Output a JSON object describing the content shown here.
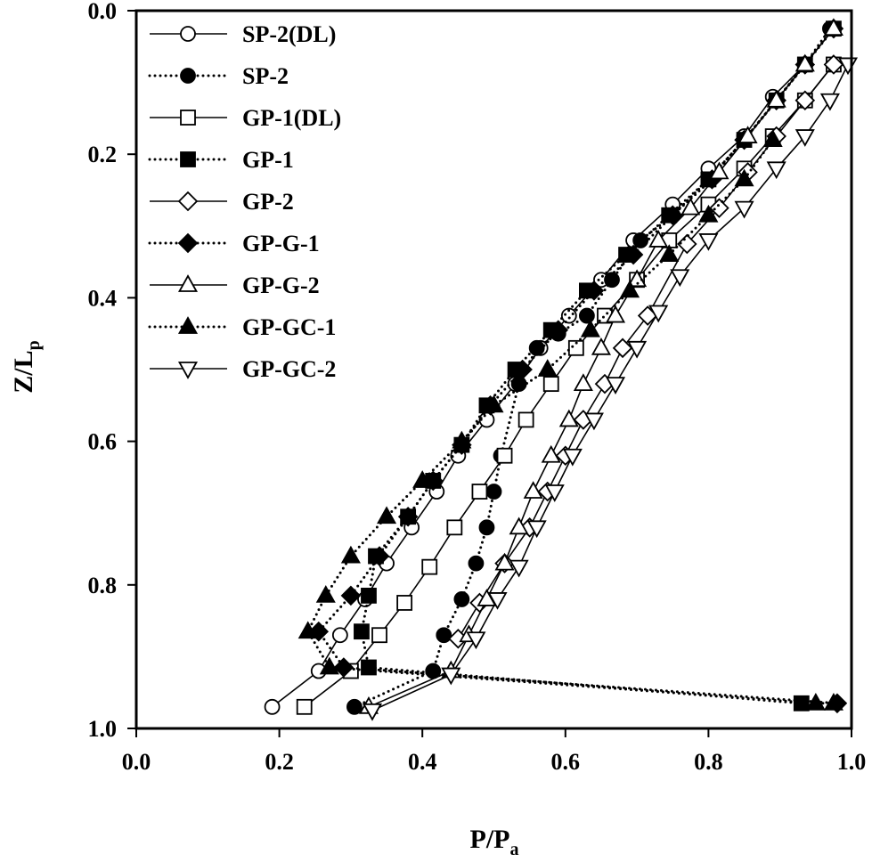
{
  "chart_data": {
    "type": "line",
    "xlabel": "P/Pa",
    "xlabel_main": "P/P",
    "xlabel_sub": "a",
    "ylabel": "Z/Lp",
    "ylabel_main": "Z/L",
    "ylabel_sub": "p",
    "xlim": [
      0.0,
      1.0
    ],
    "ylim": [
      0.0,
      1.0
    ],
    "y_inverted": true,
    "grid": false,
    "legend_position": "top-left",
    "x_ticks": [
      "0.0",
      "0.2",
      "0.4",
      "0.6",
      "0.8",
      "1.0"
    ],
    "y_ticks": [
      "0.0",
      "0.2",
      "0.4",
      "0.6",
      "0.8",
      "1.0"
    ],
    "series": [
      {
        "name": "SP-2(DL)",
        "marker": "circle",
        "filled": false,
        "line": "solid",
        "x": [
          0.19,
          0.255,
          0.285,
          0.32,
          0.35,
          0.385,
          0.42,
          0.45,
          0.49,
          0.53,
          0.565,
          0.605,
          0.65,
          0.695,
          0.75,
          0.8,
          0.85,
          0.89,
          0.935,
          0.975
        ],
        "y": [
          0.97,
          0.92,
          0.87,
          0.82,
          0.77,
          0.72,
          0.67,
          0.62,
          0.57,
          0.52,
          0.47,
          0.425,
          0.375,
          0.32,
          0.27,
          0.22,
          0.175,
          0.12,
          0.075,
          0.025
        ]
      },
      {
        "name": "SP-2",
        "marker": "circle",
        "filled": true,
        "line": "dotted",
        "x": [
          0.305,
          0.415,
          0.43,
          0.455,
          0.475,
          0.49,
          0.5,
          0.51,
          0.535,
          0.56,
          0.59,
          0.63,
          0.665,
          0.705,
          0.75,
          0.8,
          0.85,
          0.895,
          0.935,
          0.97
        ],
        "y": [
          0.97,
          0.92,
          0.87,
          0.82,
          0.77,
          0.72,
          0.67,
          0.62,
          0.52,
          0.47,
          0.45,
          0.425,
          0.375,
          0.32,
          0.285,
          0.235,
          0.18,
          0.125,
          0.075,
          0.025
        ]
      },
      {
        "name": "GP-1(DL)",
        "marker": "square",
        "filled": false,
        "line": "solid",
        "x": [
          0.235,
          0.3,
          0.34,
          0.375,
          0.41,
          0.445,
          0.48,
          0.515,
          0.545,
          0.58,
          0.615,
          0.655,
          0.7,
          0.745,
          0.8,
          0.85,
          0.89,
          0.935,
          0.975
        ],
        "y": [
          0.97,
          0.92,
          0.87,
          0.825,
          0.775,
          0.72,
          0.67,
          0.62,
          0.57,
          0.52,
          0.47,
          0.425,
          0.375,
          0.32,
          0.27,
          0.22,
          0.175,
          0.125,
          0.075
        ]
      },
      {
        "name": "GP-1",
        "marker": "square",
        "filled": true,
        "line": "dotted",
        "x": [
          0.93,
          0.325,
          0.315,
          0.325,
          0.335,
          0.38,
          0.415,
          0.455,
          0.49,
          0.53,
          0.58,
          0.63,
          0.685,
          0.745,
          0.8,
          0.85,
          0.895,
          0.935,
          0.975
        ],
        "y": [
          0.965,
          0.915,
          0.865,
          0.815,
          0.76,
          0.705,
          0.655,
          0.605,
          0.55,
          0.5,
          0.445,
          0.39,
          0.34,
          0.285,
          0.235,
          0.18,
          0.125,
          0.075,
          0.025
        ]
      },
      {
        "name": "GP-2",
        "marker": "diamond",
        "filled": false,
        "line": "solid",
        "x": [
          0.45,
          0.48,
          0.515,
          0.55,
          0.575,
          0.6,
          0.625,
          0.655,
          0.68,
          0.715,
          0.77,
          0.815,
          0.855,
          0.895,
          0.935,
          0.975
        ],
        "y": [
          0.875,
          0.825,
          0.77,
          0.72,
          0.67,
          0.62,
          0.57,
          0.52,
          0.47,
          0.425,
          0.325,
          0.275,
          0.225,
          0.175,
          0.125,
          0.075
        ]
      },
      {
        "name": "GP-G-1",
        "marker": "diamond",
        "filled": true,
        "line": "dotted",
        "x": [
          0.98,
          0.29,
          0.255,
          0.3,
          0.34,
          0.38,
          0.415,
          0.455,
          0.495,
          0.54,
          0.59,
          0.64,
          0.695,
          0.75,
          0.805,
          0.85,
          0.895,
          0.935,
          0.975
        ],
        "y": [
          0.965,
          0.915,
          0.865,
          0.815,
          0.76,
          0.705,
          0.655,
          0.605,
          0.55,
          0.5,
          0.445,
          0.39,
          0.34,
          0.285,
          0.235,
          0.18,
          0.125,
          0.075,
          0.025
        ]
      },
      {
        "name": "GP-G-2",
        "marker": "triangle-up",
        "filled": false,
        "line": "solid",
        "x": [
          0.325,
          0.44,
          0.465,
          0.49,
          0.515,
          0.535,
          0.555,
          0.58,
          0.605,
          0.625,
          0.65,
          0.67,
          0.7,
          0.73,
          0.775,
          0.815,
          0.855,
          0.895,
          0.935,
          0.975
        ],
        "y": [
          0.97,
          0.92,
          0.87,
          0.82,
          0.77,
          0.72,
          0.67,
          0.62,
          0.57,
          0.52,
          0.47,
          0.425,
          0.375,
          0.32,
          0.275,
          0.225,
          0.175,
          0.125,
          0.075,
          0.025
        ]
      },
      {
        "name": "GP-GC-1",
        "marker": "triangle-up",
        "filled": true,
        "line": "dotted",
        "x": [
          0.975,
          0.95,
          0.27,
          0.24,
          0.265,
          0.3,
          0.35,
          0.4,
          0.455,
          0.5,
          0.575,
          0.635,
          0.69,
          0.745,
          0.8,
          0.85,
          0.89
        ],
        "y": [
          0.965,
          0.965,
          0.915,
          0.865,
          0.815,
          0.76,
          0.705,
          0.655,
          0.6,
          0.55,
          0.5,
          0.445,
          0.39,
          0.34,
          0.285,
          0.235,
          0.18
        ]
      },
      {
        "name": "GP-GC-2",
        "marker": "triangle-down",
        "filled": false,
        "line": "solid",
        "x": [
          0.33,
          0.44,
          0.475,
          0.505,
          0.535,
          0.56,
          0.585,
          0.61,
          0.64,
          0.67,
          0.7,
          0.73,
          0.76,
          0.8,
          0.85,
          0.895,
          0.935,
          0.97,
          0.995
        ],
        "y": [
          0.975,
          0.925,
          0.875,
          0.82,
          0.775,
          0.72,
          0.67,
          0.62,
          0.57,
          0.52,
          0.47,
          0.42,
          0.37,
          0.32,
          0.275,
          0.22,
          0.175,
          0.125,
          0.075
        ]
      }
    ]
  }
}
